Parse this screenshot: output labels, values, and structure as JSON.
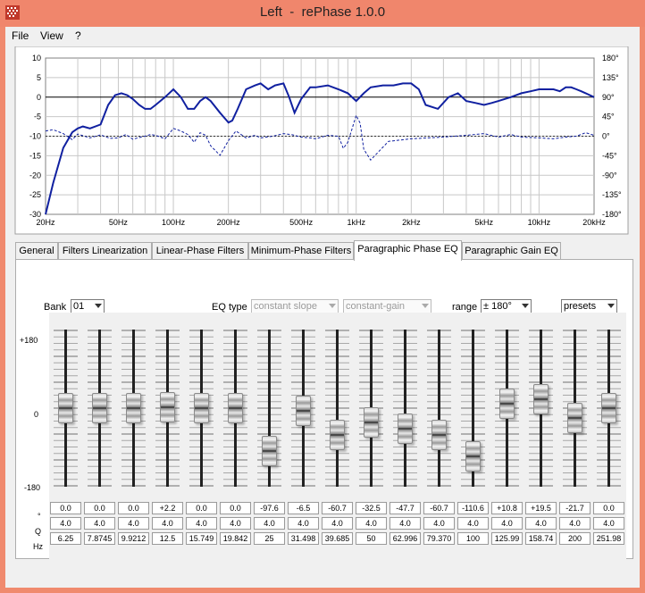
{
  "window": {
    "title": "Left  -  rePhase 1.0.0"
  },
  "menu": [
    "File",
    "View",
    "?"
  ],
  "plot": {
    "y_ticks": [
      "10",
      "5",
      "0",
      "-5",
      "-10",
      "-15",
      "-20",
      "-25",
      "-30"
    ],
    "phase_ticks": [
      "180°",
      "135°",
      "90°",
      "45°",
      "0°",
      "-45°",
      "-90°",
      "-135°",
      "-180°"
    ],
    "x_ticks": [
      "20Hz",
      "50Hz",
      "100Hz",
      "200Hz",
      "500Hz",
      "1kHz",
      "2kHz",
      "5kHz",
      "10kHz",
      "20kHz"
    ],
    "colors": {
      "magnitude": "#1020a0",
      "phase": "#1020a0",
      "grid": "#c8c8c8"
    }
  },
  "chart_data": {
    "type": "line",
    "x_scale": "log",
    "xlim": [
      20,
      20000
    ],
    "ylim": [
      -30,
      10
    ],
    "y2lim": [
      -180,
      180
    ],
    "series": [
      {
        "style": "solid",
        "axis": "left",
        "x": [
          20,
          22,
          25,
          28,
          30,
          32,
          35,
          40,
          44,
          48,
          52,
          56,
          60,
          65,
          70,
          75,
          80,
          90,
          100,
          110,
          120,
          130,
          140,
          150,
          160,
          180,
          200,
          210,
          225,
          250,
          280,
          300,
          330,
          360,
          400,
          430,
          460,
          500,
          560,
          600,
          700,
          800,
          900,
          1000,
          1100,
          1200,
          1400,
          1600,
          1800,
          2000,
          2200,
          2400,
          2800,
          3200,
          3600,
          4000,
          4500,
          5000,
          5500,
          6000,
          7000,
          8000,
          9000,
          10000,
          11000,
          12000,
          13000,
          14000,
          15000,
          16000,
          17000,
          18000,
          20000
        ],
        "y": [
          -30,
          -22,
          -13,
          -9,
          -8,
          -7.5,
          -8,
          -7,
          -2,
          0.5,
          1,
          0.5,
          -0.5,
          -2,
          -3,
          -3,
          -2,
          0,
          2,
          0,
          -3,
          -3,
          -1,
          0,
          -1,
          -4,
          -6.5,
          -6,
          -3,
          2,
          3,
          3.5,
          2,
          3,
          3.5,
          0,
          -4,
          -0.5,
          2.5,
          2.5,
          3,
          2,
          1,
          -1,
          1,
          2.5,
          3,
          3,
          3.5,
          3.5,
          2,
          -2,
          -3,
          0,
          1,
          -1,
          -1.5,
          -2,
          -1.5,
          -1,
          0,
          1,
          1.5,
          2,
          2,
          2,
          1.5,
          2.5,
          2.5,
          2,
          1.5,
          1,
          0
        ]
      },
      {
        "style": "dashed",
        "axis": "right",
        "x": [
          20,
          22,
          25,
          28,
          30,
          35,
          40,
          45,
          50,
          55,
          60,
          65,
          70,
          75,
          80,
          90,
          100,
          110,
          120,
          130,
          140,
          150,
          160,
          180,
          200,
          220,
          250,
          280,
          300,
          350,
          400,
          450,
          500,
          560,
          600,
          700,
          800,
          850,
          900,
          950,
          1000,
          1050,
          1100,
          1200,
          1500,
          2000,
          3000,
          4000,
          5000,
          6000,
          7000,
          8000,
          10000,
          12000,
          14000,
          16000,
          18000,
          20000
        ],
        "y": [
          12,
          15,
          6,
          -8,
          5,
          -4,
          3,
          -5,
          -4,
          4,
          -7,
          -3,
          0,
          4,
          2,
          -6,
          18,
          12,
          4,
          -14,
          8,
          2,
          -22,
          -44,
          -10,
          12,
          -4,
          2,
          -4,
          0,
          6,
          3,
          -2,
          -4,
          -6,
          2,
          0,
          -28,
          -14,
          18,
          48,
          30,
          -30,
          -55,
          -12,
          -6,
          -2,
          2,
          6,
          -2,
          4,
          -2,
          -4,
          -6,
          -2,
          0,
          8,
          2
        ]
      }
    ]
  },
  "tabs": [
    "General",
    "Filters Linearization",
    "Linear-Phase Filters",
    "Minimum-Phase Filters",
    "Paragraphic Phase EQ",
    "Paragraphic Gain EQ"
  ],
  "active_tab": 4,
  "controls": {
    "bank_label": "Bank",
    "bank_value": "01",
    "eq_type_label": "EQ type",
    "eq_type_value": "constant slope",
    "gain_mode_value": "constant-gain",
    "range_label": "range",
    "range_value": "± 180°",
    "presets_label": "presets"
  },
  "scale": {
    "top": "+180",
    "mid": "0",
    "bottom": "-180"
  },
  "row_labels": {
    "phase": "°",
    "q": "Q",
    "freq": "Hz"
  },
  "bands": [
    {
      "phase": "0.0",
      "q": "4.0",
      "freq": "6.25",
      "value": 0
    },
    {
      "phase": "0.0",
      "q": "4.0",
      "freq": "7.8745",
      "value": 0
    },
    {
      "phase": "0.0",
      "q": "4.0",
      "freq": "9.9212",
      "value": 0
    },
    {
      "phase": "+2.2",
      "q": "4.0",
      "freq": "12.5",
      "value": 2.2
    },
    {
      "phase": "0.0",
      "q": "4.0",
      "freq": "15.749",
      "value": 0
    },
    {
      "phase": "0.0",
      "q": "4.0",
      "freq": "19.842",
      "value": 0
    },
    {
      "phase": "-97.6",
      "q": "4.0",
      "freq": "25",
      "value": -97.6
    },
    {
      "phase": "-6.5",
      "q": "4.0",
      "freq": "31.498",
      "value": -6.5
    },
    {
      "phase": "-60.7",
      "q": "4.0",
      "freq": "39.685",
      "value": -60.7
    },
    {
      "phase": "-32.5",
      "q": "4.0",
      "freq": "50",
      "value": -32.5
    },
    {
      "phase": "-47.7",
      "q": "4.0",
      "freq": "62.996",
      "value": -47.7
    },
    {
      "phase": "-60.7",
      "q": "4.0",
      "freq": "79.370",
      "value": -60.7
    },
    {
      "phase": "-110.6",
      "q": "4.0",
      "freq": "100",
      "value": -110.6
    },
    {
      "phase": "+10.8",
      "q": "4.0",
      "freq": "125.99",
      "value": 10.8
    },
    {
      "phase": "+19.5",
      "q": "4.0",
      "freq": "158.74",
      "value": 19.5
    },
    {
      "phase": "-21.7",
      "q": "4.0",
      "freq": "200",
      "value": -21.7
    },
    {
      "phase": "0.0",
      "q": "4.0",
      "freq": "251.98",
      "value": 0
    }
  ]
}
